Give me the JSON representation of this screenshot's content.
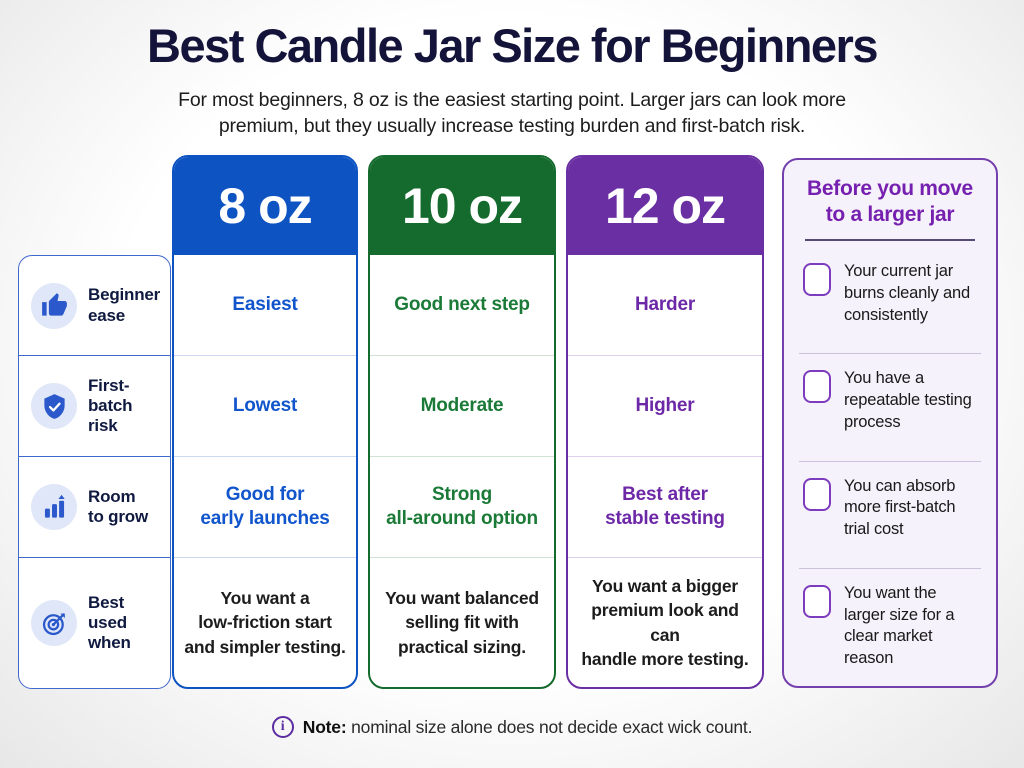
{
  "header": {
    "title": "Best Candle Jar Size for Beginners",
    "subtitle_lines": [
      "For most beginners, 8 oz is the easiest starting point. Larger jars can look more",
      "premium, but they usually increase testing burden and first-batch risk."
    ]
  },
  "rows": [
    {
      "icon": "thumbs-up-icon",
      "label_lines": [
        "Beginner",
        "ease"
      ]
    },
    {
      "icon": "shield-check-icon",
      "label_lines": [
        "First-batch",
        "risk"
      ]
    },
    {
      "icon": "bar-chart-growth-icon",
      "label_lines": [
        "Room",
        "to grow"
      ]
    },
    {
      "icon": "target-icon",
      "label_lines": [
        "Best used",
        "when"
      ]
    }
  ],
  "columns": [
    {
      "name": "8 oz",
      "accent": "#0d53c2",
      "text_color": "#1155cc",
      "cells": [
        [
          "Easiest"
        ],
        [
          "Lowest"
        ],
        [
          "Good for",
          "early launches"
        ],
        [
          "You want a",
          "low-friction start",
          "and simpler testing."
        ]
      ]
    },
    {
      "name": "10 oz",
      "accent": "#156b2d",
      "text_color": "#1b7a37",
      "cells": [
        [
          "Good next step"
        ],
        [
          "Moderate"
        ],
        [
          "Strong",
          "all-around option"
        ],
        [
          "You want balanced",
          "selling fit with",
          "practical sizing."
        ]
      ]
    },
    {
      "name": "12 oz",
      "accent": "#6a2fa2",
      "text_color": "#6d28a8",
      "cells": [
        [
          "Harder"
        ],
        [
          "Higher"
        ],
        [
          "Best after",
          "stable testing"
        ],
        [
          "You want a bigger",
          "premium look and can",
          "handle more testing."
        ]
      ]
    }
  ],
  "checklist": {
    "title_lines": [
      "Before you move",
      "to a larger jar"
    ],
    "items": [
      {
        "lines": [
          "Your current jar",
          "burns cleanly and",
          "consistently"
        ]
      },
      {
        "lines": [
          "You have a",
          "repeatable testing",
          "process"
        ]
      },
      {
        "lines": [
          "You can absorb",
          "more first-batch",
          "trial cost"
        ]
      },
      {
        "lines": [
          "You want the",
          "larger size for a",
          "clear market reason"
        ]
      }
    ]
  },
  "note": {
    "label": "Note:",
    "text": "nominal size alone does not decide exact wick count."
  },
  "colors": {
    "title_navy": "#14143a",
    "panel_purple": "#7440ad",
    "checklist_title_purple": "#7620b0",
    "label_panel_blue": "#3f68cd"
  }
}
